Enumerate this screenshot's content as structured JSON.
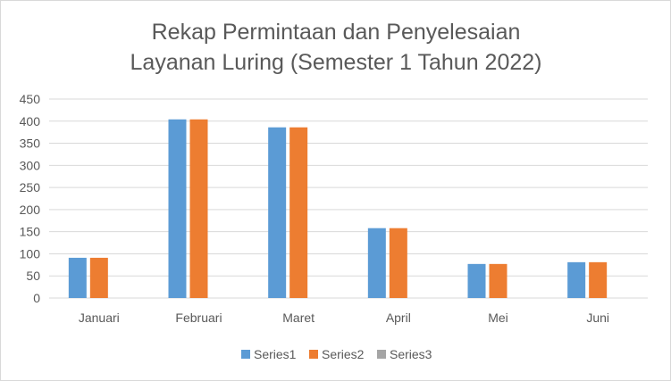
{
  "chart_data": {
    "type": "bar",
    "title": "Rekap Permintaan dan Penyelesaian Layanan Luring (Semester 1 Tahun 2022)",
    "title_lines": [
      "Rekap Permintaan dan Penyelesaian",
      "Layanan Luring (Semester 1 Tahun 2022)"
    ],
    "categories": [
      "Januari",
      "Februari",
      "Maret",
      "April",
      "Mei",
      "Juni"
    ],
    "series": [
      {
        "name": "Series1",
        "color": "#5b9bd5",
        "values": [
          91,
          404,
          386,
          158,
          77,
          81
        ]
      },
      {
        "name": "Series2",
        "color": "#ed7d31",
        "values": [
          91,
          404,
          386,
          158,
          77,
          81
        ]
      },
      {
        "name": "Series3",
        "color": "#a5a5a5",
        "values": [
          0,
          0,
          0,
          0,
          0,
          0
        ]
      }
    ],
    "ylim": [
      0,
      450
    ],
    "yticks": [
      "0",
      "50",
      "100",
      "150",
      "200",
      "250",
      "300",
      "350",
      "400",
      "450"
    ],
    "xlabel": "",
    "ylabel": "",
    "grid": true,
    "legend_position": "bottom"
  }
}
